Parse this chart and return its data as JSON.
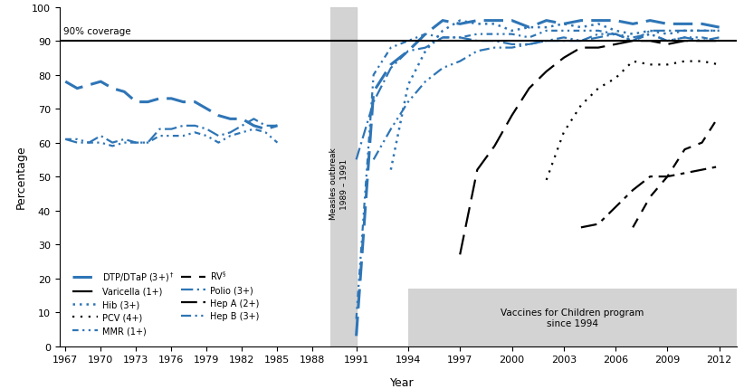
{
  "blue": "#2e75b6",
  "black": "#000000",
  "DTP": {
    "years": [
      1967,
      1968,
      1969,
      1970,
      1971,
      1972,
      1973,
      1974,
      1975,
      1976,
      1977,
      1978,
      1979,
      1980,
      1981,
      1982,
      1983,
      1984,
      1985
    ],
    "values": [
      78,
      76,
      77,
      78,
      76,
      75,
      72,
      72,
      73,
      73,
      72,
      72,
      70,
      68,
      67,
      67,
      65,
      64,
      65
    ]
  },
  "MMR": {
    "years": [
      1967,
      1968,
      1969,
      1970,
      1971,
      1972,
      1973,
      1974,
      1975,
      1976,
      1977,
      1978,
      1979,
      1980,
      1981,
      1982,
      1983,
      1984,
      1985
    ],
    "values": [
      61,
      61,
      60,
      60,
      59,
      60,
      60,
      60,
      62,
      62,
      62,
      63,
      62,
      60,
      62,
      63,
      64,
      63,
      60
    ]
  },
  "Polio": {
    "years": [
      1967,
      1968,
      1969,
      1970,
      1971,
      1972,
      1973,
      1974,
      1975,
      1976,
      1977,
      1978,
      1979,
      1980,
      1981,
      1982,
      1983,
      1984,
      1985
    ],
    "values": [
      61,
      60,
      60,
      62,
      60,
      61,
      60,
      60,
      64,
      64,
      65,
      65,
      64,
      62,
      63,
      65,
      67,
      65,
      65
    ]
  },
  "DTP_post": {
    "years": [
      1991,
      1992,
      1993,
      1994,
      1995,
      1996,
      1997,
      1998,
      1999,
      2000,
      2001,
      2002,
      2003,
      2004,
      2005,
      2006,
      2007,
      2008,
      2009,
      2010,
      2011,
      2012
    ],
    "values": [
      3,
      75,
      83,
      87,
      92,
      96,
      95,
      96,
      96,
      96,
      94,
      96,
      95,
      96,
      96,
      96,
      95,
      96,
      95,
      95,
      95,
      94
    ]
  },
  "MMR_post": {
    "years": [
      1991,
      1992,
      1993,
      1994,
      1995,
      1996,
      1997,
      1998,
      1999,
      2000,
      2001,
      2002,
      2003,
      2004,
      2005,
      2006,
      2007,
      2008,
      2009,
      2010,
      2011,
      2012
    ],
    "values": [
      8,
      80,
      88,
      90,
      92,
      91,
      91,
      92,
      92,
      92,
      91,
      93,
      93,
      93,
      93,
      92,
      90,
      92,
      90,
      91,
      91,
      90
    ]
  },
  "Polio_post": {
    "years": [
      1991,
      1992,
      1993,
      1994,
      1995,
      1996,
      1997,
      1998,
      1999,
      2000,
      2001,
      2002,
      2003,
      2004,
      2005,
      2006,
      2007,
      2008,
      2009,
      2010,
      2011,
      2012
    ],
    "values": [
      55,
      72,
      82,
      87,
      88,
      91,
      91,
      90,
      90,
      89,
      89,
      90,
      90,
      90,
      91,
      92,
      90,
      93,
      93,
      93,
      93,
      93
    ]
  },
  "HepB": {
    "years": [
      1992,
      1993,
      1994,
      1995,
      1996,
      1997,
      1998,
      1999,
      2000,
      2001,
      2002,
      2003,
      2004,
      2005,
      2006,
      2007,
      2008,
      2009,
      2010,
      2011,
      2012
    ],
    "values": [
      55,
      64,
      72,
      78,
      82,
      84,
      87,
      88,
      88,
      89,
      90,
      91,
      90,
      92,
      92,
      91,
      92,
      90,
      91,
      90,
      91
    ]
  },
  "Hib": {
    "years": [
      1993,
      1994,
      1995,
      1996,
      1997,
      1998,
      1999,
      2000,
      2001,
      2002,
      2003,
      2004,
      2005,
      2006,
      2007,
      2008,
      2009,
      2010,
      2011,
      2012
    ],
    "values": [
      52,
      77,
      87,
      93,
      96,
      95,
      95,
      93,
      94,
      94,
      95,
      94,
      95,
      93,
      92,
      93,
      92,
      93,
      93,
      93
    ]
  },
  "Varicella": {
    "years": [
      1997,
      1998,
      1999,
      2000,
      2001,
      2002,
      2003,
      2004,
      2005,
      2006,
      2007,
      2008,
      2009,
      2010,
      2011,
      2012
    ],
    "values": [
      27,
      52,
      59,
      68,
      76,
      81,
      85,
      88,
      88,
      89,
      90,
      90,
      89,
      90,
      90,
      90
    ]
  },
  "PCV": {
    "years": [
      2002,
      2003,
      2004,
      2005,
      2006,
      2007,
      2008,
      2009,
      2010,
      2011,
      2012
    ],
    "values": [
      49,
      63,
      71,
      76,
      79,
      84,
      83,
      83,
      84,
      84,
      83
    ]
  },
  "RV": {
    "years": [
      2007,
      2008,
      2009,
      2010,
      2011,
      2012
    ],
    "values": [
      35,
      44,
      50,
      58,
      60,
      68
    ]
  },
  "HepA": {
    "years": [
      2004,
      2005,
      2006,
      2007,
      2008,
      2009,
      2010,
      2011,
      2012
    ],
    "values": [
      35,
      36,
      41,
      46,
      50,
      50,
      51,
      52,
      53
    ]
  },
  "xticks_left": [
    1967,
    1970,
    1973,
    1976,
    1979,
    1982,
    1985,
    1988
  ],
  "xticks_right": [
    1991,
    1994,
    1997,
    2000,
    2003,
    2006,
    2009,
    2012
  ],
  "xlim_left": [
    1966.5,
    1989.5
  ],
  "xlim_right": [
    1989.5,
    2013.0
  ],
  "ylim": [
    0,
    100
  ],
  "yticks": [
    0,
    10,
    20,
    30,
    40,
    50,
    60,
    70,
    80,
    90,
    100
  ],
  "ylabel": "Percentage",
  "xlabel": "Year",
  "coverage_line": 90,
  "coverage_label": "90% coverage",
  "outbreak_xmin": 1989,
  "outbreak_xmax": 1991,
  "vfc_xmin": 1994,
  "vfc_xmax": 2013,
  "vfc_ymin": 0,
  "vfc_ymax": 17,
  "vfc_text": "Vaccines for Children program\nsince 1994",
  "outbreak_text": "Measles outbreak\n1989 – 1991"
}
